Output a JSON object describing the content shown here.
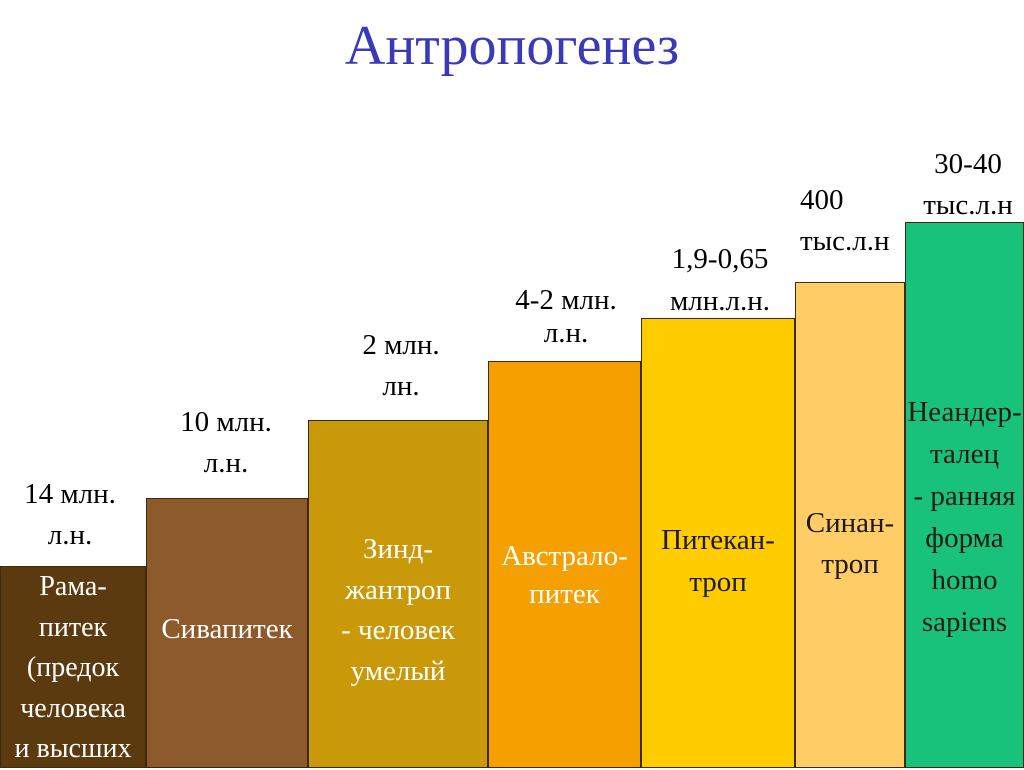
{
  "title": "Антропогенез",
  "steps": [
    {
      "name": "Рама-\nпитек\n(предок\nчеловека\nи высших",
      "date": "14 млн.\nл.н.",
      "color": "#5b3a10"
    },
    {
      "name": "Сивапитек",
      "date": "10 млн.\nл.н.",
      "color": "#8c5a2b"
    },
    {
      "name": "Зинд-\nжантроп\n- человек\nумелый",
      "date": "2 млн.\nлн.",
      "color": "#c9990a"
    },
    {
      "name": "Австрало-\nпитек",
      "date": "4-2 млн.\nл.н.",
      "color": "#f5a000"
    },
    {
      "name": "Питекан-\nтроп",
      "date": "1,9-0,65\nмлн.л.н.",
      "color": "#ffcc00"
    },
    {
      "name": "Синан-\nтроп",
      "date": "400\nтыс.л.н\n.",
      "color": "#ffcc66"
    },
    {
      "name": "Неандер-\nталец\n- ранняя\nформа\nhomo\nsapiens",
      "date": "30-40\nтыс.л.н",
      "color": "#19c27a"
    }
  ]
}
